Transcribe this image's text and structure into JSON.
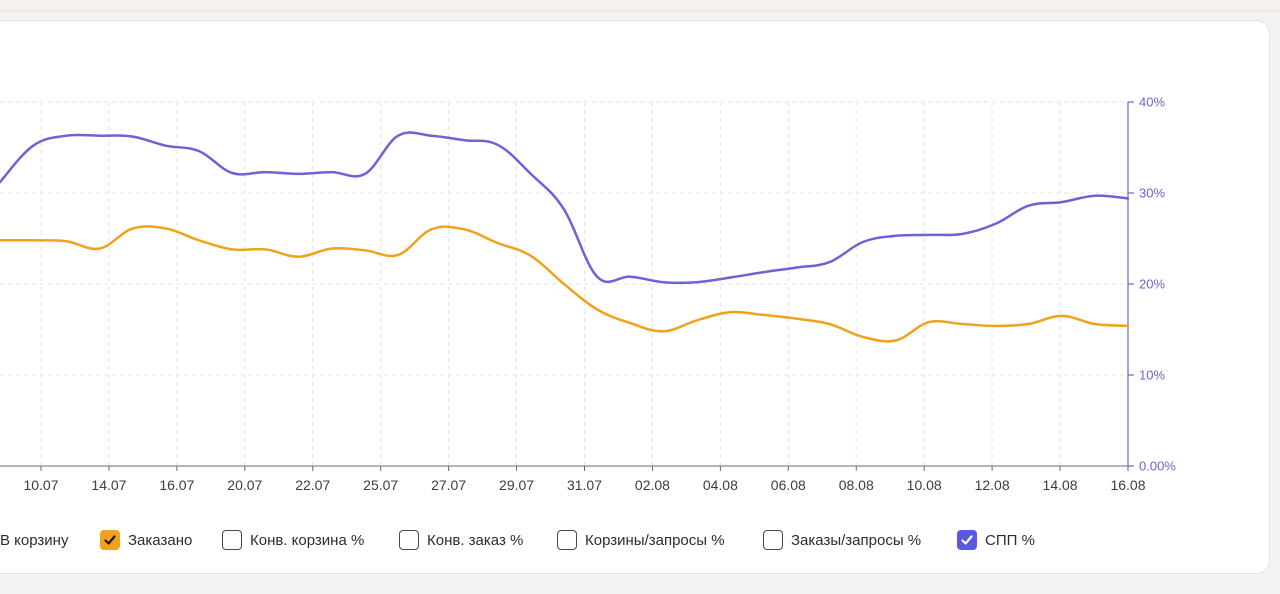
{
  "chart_data": {
    "type": "line",
    "x_ticks": [
      "10.07",
      "14.07",
      "16.07",
      "20.07",
      "22.07",
      "25.07",
      "27.07",
      "29.07",
      "31.07",
      "02.08",
      "04.08",
      "06.08",
      "08.08",
      "10.08",
      "12.08",
      "14.08",
      "16.08"
    ],
    "y2_ticks": [
      "0.00%",
      "10%",
      "20%",
      "30%",
      "40%"
    ],
    "y2lim": [
      0,
      40
    ],
    "grid": true,
    "series": [
      {
        "name": "Заказано",
        "color": "#f0a21c",
        "axis": "left",
        "values": [
          24.8,
          24.8,
          24.7,
          23.9,
          26.1,
          26.1,
          24.8,
          23.8,
          23.8,
          23.0,
          23.9,
          23.7,
          23.2,
          26.0,
          26.0,
          24.5,
          23.1,
          20.0,
          17.2,
          15.7,
          14.8,
          16.0,
          16.9,
          16.6,
          16.2,
          15.6,
          14.2,
          13.8,
          15.8,
          15.6,
          15.4,
          15.6,
          16.5,
          15.6,
          15.4
        ]
      },
      {
        "name": "СПП %",
        "color": "#6b63d6",
        "axis": "right",
        "values": [
          31.2,
          35.2,
          36.3,
          36.3,
          36.2,
          35.2,
          34.6,
          32.2,
          32.3,
          32.1,
          32.3,
          32.1,
          36.3,
          36.3,
          35.8,
          35.3,
          32.1,
          28.2,
          20.8,
          20.8,
          20.2,
          20.2,
          20.7,
          21.3,
          21.8,
          22.4,
          24.6,
          25.3,
          25.4,
          25.5,
          26.6,
          28.6,
          29.0,
          29.7,
          29.4
        ]
      }
    ]
  },
  "legend": [
    {
      "label": "В корзину",
      "checked": false,
      "color": "#6b63d6"
    },
    {
      "label": "Заказано",
      "checked": true,
      "color": "#f0a21c"
    },
    {
      "label": "Конв. корзина %",
      "checked": false,
      "color": "#6b63d6"
    },
    {
      "label": "Конв. заказ %",
      "checked": false,
      "color": "#6b63d6"
    },
    {
      "label": "Корзины/запросы %",
      "checked": false,
      "color": "#6b63d6"
    },
    {
      "label": "Заказы/запросы %",
      "checked": false,
      "color": "#6b63d6"
    },
    {
      "label": "СПП %",
      "checked": true,
      "color": "#5b58e0"
    }
  ],
  "colors": {
    "axis_right": "#6b63d6",
    "grid": "#e3e3ea",
    "tick_text": "#3c3c46"
  },
  "icons": {
    "checked": "check-icon"
  }
}
